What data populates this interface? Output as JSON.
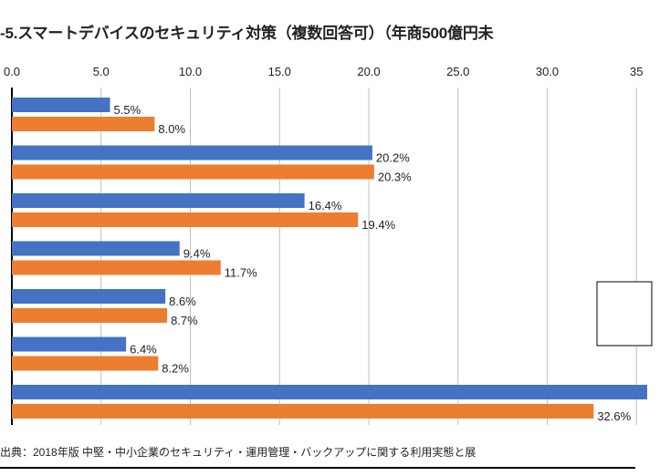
{
  "title": "-5.スマートデバイスのセキュリティ対策（複数回答可）（年商500億円未",
  "source": "出典：2018年版 中堅・中小企業のセキュリティ・運用管理・バックアップに関する利用実態と展",
  "chart_data": {
    "type": "bar",
    "orientation": "horizontal",
    "title": "-5.スマートデバイスのセキュリティ対策（複数回答可）（年商500億円未",
    "xlabel": "",
    "ylabel": "",
    "xlim": [
      0,
      35
    ],
    "x_ticks": [
      "0.0",
      "5.0",
      "10.0",
      "15.0",
      "20.0",
      "25.0",
      "30.0",
      "35"
    ],
    "grid": true,
    "series": [
      {
        "color": "#4472C4",
        "values": [
          5.5,
          20.2,
          16.4,
          9.4,
          8.6,
          6.4,
          35.6
        ],
        "labels": [
          "5.5%",
          "20.2%",
          "16.4%",
          "9.4%",
          "8.6%",
          "6.4%",
          ""
        ]
      },
      {
        "color": "#ED7D31",
        "values": [
          8.0,
          20.3,
          19.4,
          11.7,
          8.7,
          8.2,
          32.6
        ],
        "labels": [
          "8.0%",
          "20.3%",
          "19.4%",
          "11.7%",
          "8.7%",
          "8.2%",
          "32.6%"
        ]
      }
    ]
  }
}
